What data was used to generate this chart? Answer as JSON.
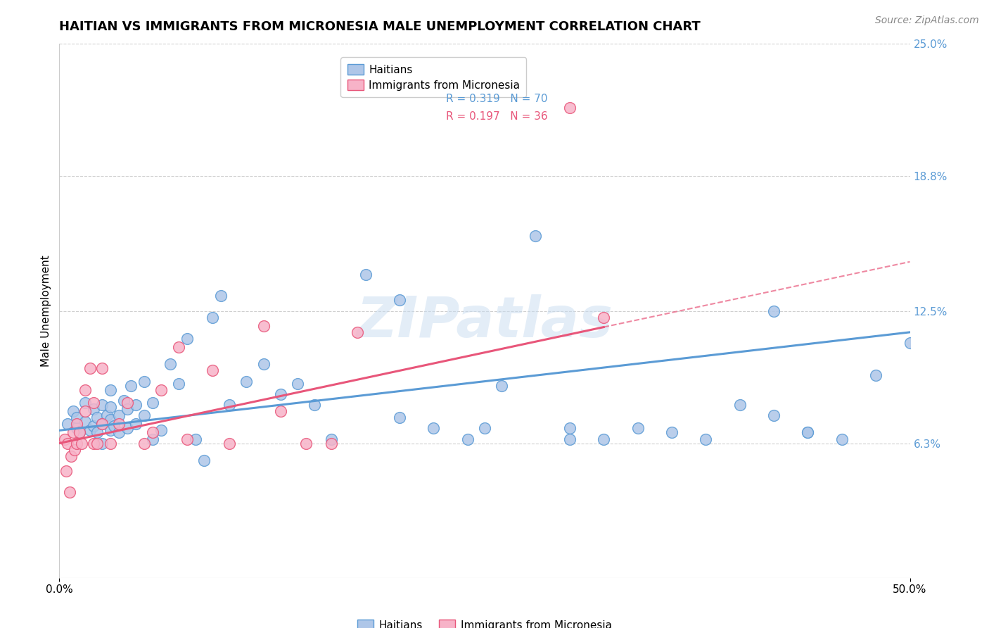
{
  "title": "HAITIAN VS IMMIGRANTS FROM MICRONESIA MALE UNEMPLOYMENT CORRELATION CHART",
  "source": "Source: ZipAtlas.com",
  "ylabel": "Male Unemployment",
  "xlim": [
    0.0,
    0.5
  ],
  "ylim": [
    0.0,
    0.25
  ],
  "ytick_labels": [
    "6.3%",
    "12.5%",
    "18.8%",
    "25.0%"
  ],
  "ytick_values": [
    0.063,
    0.125,
    0.188,
    0.25
  ],
  "background_color": "#ffffff",
  "grid_color": "#d0d0d0",
  "legend_label1": "Haitians",
  "legend_label2": "Immigrants from Micronesia",
  "R1": "0.319",
  "N1": "70",
  "R2": "0.197",
  "N2": "36",
  "scatter1_color": "#aec6e8",
  "scatter2_color": "#f7b3c8",
  "line1_color": "#5b9bd5",
  "line2_color": "#e8567a",
  "watermark": "ZIPatlas",
  "title_fontsize": 13,
  "axis_label_fontsize": 11,
  "tick_fontsize": 11,
  "legend_fontsize": 11,
  "source_fontsize": 10,
  "scatter1_x": [
    0.005,
    0.008,
    0.01,
    0.01,
    0.012,
    0.015,
    0.015,
    0.018,
    0.02,
    0.02,
    0.022,
    0.022,
    0.025,
    0.025,
    0.025,
    0.028,
    0.03,
    0.03,
    0.03,
    0.03,
    0.032,
    0.035,
    0.035,
    0.038,
    0.04,
    0.04,
    0.042,
    0.045,
    0.045,
    0.05,
    0.05,
    0.055,
    0.055,
    0.06,
    0.065,
    0.07,
    0.075,
    0.08,
    0.085,
    0.09,
    0.095,
    0.1,
    0.11,
    0.12,
    0.13,
    0.14,
    0.15,
    0.16,
    0.18,
    0.2,
    0.22,
    0.24,
    0.26,
    0.28,
    0.3,
    0.32,
    0.34,
    0.36,
    0.38,
    0.4,
    0.42,
    0.44,
    0.46,
    0.48,
    0.5,
    0.42,
    0.44,
    0.3,
    0.25,
    0.2
  ],
  "scatter1_y": [
    0.072,
    0.078,
    0.07,
    0.075,
    0.068,
    0.073,
    0.082,
    0.069,
    0.071,
    0.079,
    0.068,
    0.075,
    0.063,
    0.072,
    0.081,
    0.076,
    0.069,
    0.074,
    0.08,
    0.088,
    0.071,
    0.068,
    0.076,
    0.083,
    0.07,
    0.079,
    0.09,
    0.072,
    0.081,
    0.076,
    0.092,
    0.065,
    0.082,
    0.069,
    0.1,
    0.091,
    0.112,
    0.065,
    0.055,
    0.122,
    0.132,
    0.081,
    0.092,
    0.1,
    0.086,
    0.091,
    0.081,
    0.065,
    0.142,
    0.13,
    0.07,
    0.065,
    0.09,
    0.16,
    0.07,
    0.065,
    0.07,
    0.068,
    0.065,
    0.081,
    0.076,
    0.068,
    0.065,
    0.095,
    0.11,
    0.125,
    0.068,
    0.065,
    0.07,
    0.075
  ],
  "scatter2_x": [
    0.003,
    0.004,
    0.005,
    0.006,
    0.007,
    0.008,
    0.009,
    0.01,
    0.01,
    0.012,
    0.013,
    0.015,
    0.015,
    0.018,
    0.02,
    0.02,
    0.022,
    0.025,
    0.025,
    0.03,
    0.035,
    0.04,
    0.05,
    0.055,
    0.06,
    0.07,
    0.075,
    0.09,
    0.1,
    0.12,
    0.13,
    0.145,
    0.16,
    0.175,
    0.3,
    0.32
  ],
  "scatter2_y": [
    0.065,
    0.05,
    0.063,
    0.04,
    0.057,
    0.068,
    0.06,
    0.063,
    0.072,
    0.068,
    0.063,
    0.078,
    0.088,
    0.098,
    0.063,
    0.082,
    0.063,
    0.072,
    0.098,
    0.063,
    0.072,
    0.082,
    0.063,
    0.068,
    0.088,
    0.108,
    0.065,
    0.097,
    0.063,
    0.118,
    0.078,
    0.063,
    0.063,
    0.115,
    0.22,
    0.122
  ],
  "line1_x_start": 0.0,
  "line1_x_end": 0.5,
  "line1_y_start": 0.069,
  "line1_y_end": 0.115,
  "line2_x_start": 0.0,
  "line2_x_end": 0.5,
  "line2_y_start": 0.063,
  "line2_y_end": 0.148
}
